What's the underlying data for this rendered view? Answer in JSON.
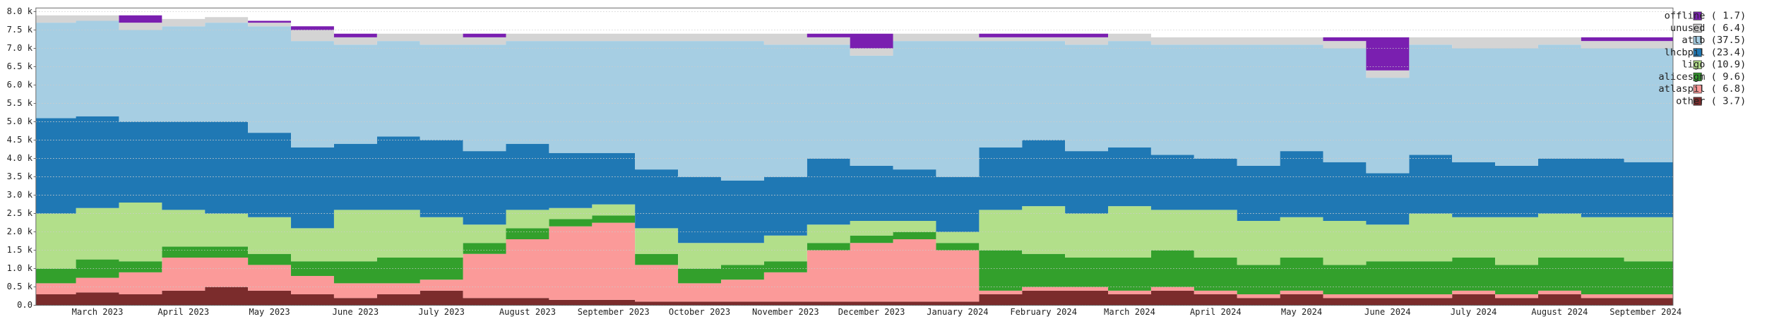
{
  "chart_data": {
    "type": "area",
    "stacked": true,
    "grid": true,
    "legend": "right",
    "categories": [
      null,
      "March 2023",
      null,
      "April 2023",
      null,
      "May 2023",
      null,
      "June 2023",
      null,
      "July 2023",
      null,
      "August 2023",
      null,
      "September 2023",
      null,
      "October 2023",
      null,
      "November 2023",
      null,
      "December 2023",
      null,
      "January 2024",
      null,
      "February 2024",
      null,
      "March 2024",
      null,
      "April 2024",
      null,
      "May 2024",
      null,
      "June 2024",
      null,
      "July 2024",
      null,
      "August 2024",
      null,
      "September 2024"
    ],
    "ylim": [
      0,
      8100
    ],
    "yticks": [
      {
        "value": 0,
        "label": "0.0"
      },
      {
        "value": 500,
        "label": "0.5 k"
      },
      {
        "value": 1000,
        "label": "1.0 k"
      },
      {
        "value": 1500,
        "label": "1.5 k"
      },
      {
        "value": 2000,
        "label": "2.0 k"
      },
      {
        "value": 2500,
        "label": "2.5 k"
      },
      {
        "value": 3000,
        "label": "3.0 k"
      },
      {
        "value": 3500,
        "label": "3.5 k"
      },
      {
        "value": 4000,
        "label": "4.0 k"
      },
      {
        "value": 4500,
        "label": "4.5 k"
      },
      {
        "value": 5000,
        "label": "5.0 k"
      },
      {
        "value": 5500,
        "label": "5.5 k"
      },
      {
        "value": 6000,
        "label": "6.0 k"
      },
      {
        "value": 6500,
        "label": "6.5 k"
      },
      {
        "value": 7000,
        "label": "7.0 k"
      },
      {
        "value": 7500,
        "label": "7.5 k"
      },
      {
        "value": 8000,
        "label": "8.0 k"
      }
    ],
    "series": [
      {
        "name": "other ( 3.7)",
        "color": "#7b2c2c",
        "values": [
          300,
          350,
          300,
          400,
          500,
          400,
          300,
          200,
          300,
          400,
          200,
          200,
          150,
          150,
          100,
          100,
          100,
          100,
          100,
          100,
          100,
          100,
          300,
          400,
          400,
          300,
          400,
          300,
          200,
          300,
          200,
          200,
          200,
          300,
          200,
          300,
          200,
          200
        ]
      },
      {
        "name": "atlaspil ( 6.8)",
        "color": "#fb9a99",
        "values": [
          300,
          400,
          600,
          900,
          800,
          700,
          500,
          400,
          300,
          300,
          1200,
          1600,
          2000,
          2100,
          1000,
          500,
          600,
          800,
          1400,
          1600,
          1700,
          1400,
          100,
          100,
          100,
          100,
          100,
          100,
          100,
          100,
          100,
          100,
          100,
          100,
          100,
          100,
          100,
          100
        ]
      },
      {
        "name": "alicesgm ( 9.6)",
        "color": "#33a02c",
        "values": [
          400,
          500,
          300,
          300,
          300,
          300,
          400,
          600,
          700,
          600,
          300,
          300,
          200,
          200,
          300,
          400,
          400,
          300,
          200,
          200,
          200,
          200,
          1100,
          900,
          800,
          900,
          1000,
          900,
          800,
          900,
          800,
          900,
          900,
          900,
          800,
          900,
          1000,
          900
        ]
      },
      {
        "name": "ligo (10.9)",
        "color": "#b2df8a",
        "values": [
          1500,
          1400,
          1600,
          1000,
          900,
          1000,
          900,
          1400,
          1300,
          1100,
          500,
          500,
          300,
          300,
          700,
          700,
          600,
          700,
          500,
          400,
          300,
          300,
          1100,
          1300,
          1200,
          1400,
          1100,
          1300,
          1200,
          1100,
          1200,
          1000,
          1300,
          1100,
          1300,
          1200,
          1100,
          1200
        ]
      },
      {
        "name": "lhcbpil (23.4)",
        "color": "#1f78b4",
        "values": [
          2600,
          2500,
          2200,
          2400,
          2500,
          2300,
          2200,
          1800,
          2000,
          2100,
          2000,
          1800,
          1500,
          1400,
          1600,
          1800,
          1700,
          1600,
          1800,
          1500,
          1400,
          1500,
          1700,
          1800,
          1700,
          1600,
          1500,
          1400,
          1500,
          1800,
          1600,
          1400,
          1600,
          1500,
          1400,
          1500,
          1600,
          1500
        ]
      },
      {
        "name": "atlb (37.5)",
        "color": "#a6cee3",
        "values": [
          2600,
          2600,
          2500,
          2600,
          2700,
          2900,
          2900,
          2700,
          2600,
          2600,
          2900,
          2800,
          3050,
          3050,
          3500,
          3700,
          3800,
          3600,
          3100,
          3000,
          3500,
          3700,
          2900,
          2700,
          2900,
          2900,
          3000,
          3100,
          3300,
          2900,
          3100,
          2600,
          3000,
          3100,
          3200,
          3100,
          3000,
          3100
        ]
      },
      {
        "name": "unused ( 6.4)",
        "color": "#d4d4d4",
        "values": [
          200,
          150,
          200,
          200,
          150,
          100,
          300,
          200,
          200,
          300,
          200,
          200,
          200,
          200,
          200,
          200,
          200,
          300,
          200,
          200,
          200,
          200,
          100,
          100,
          200,
          200,
          200,
          200,
          200,
          200,
          200,
          200,
          200,
          300,
          300,
          200,
          200,
          200
        ]
      },
      {
        "name": "offline ( 1.7)",
        "color": "#7a1fb0",
        "values": [
          0,
          0,
          200,
          0,
          0,
          50,
          100,
          100,
          0,
          0,
          100,
          0,
          0,
          0,
          0,
          0,
          0,
          0,
          100,
          400,
          0,
          0,
          100,
          100,
          100,
          0,
          0,
          0,
          0,
          0,
          100,
          900,
          0,
          0,
          0,
          0,
          100,
          100
        ]
      }
    ]
  }
}
